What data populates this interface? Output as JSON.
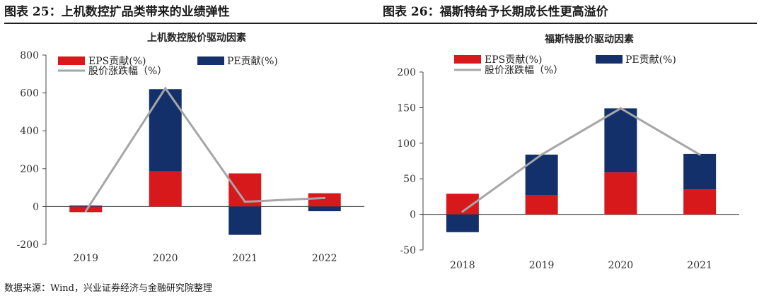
{
  "figures": [
    {
      "caption": "图表 25：上机数控扩品类带来的业绩弹性",
      "chart_data": {
        "type": "bar",
        "stacked": true,
        "title": "上机数控股价驱动因素",
        "categories": [
          "2019",
          "2020",
          "2021",
          "2022"
        ],
        "ylim": [
          -200,
          800
        ],
        "yticks": [
          -200,
          0,
          200,
          400,
          600,
          800
        ],
        "series": [
          {
            "name": "EPS贡献(%)",
            "kind": "bar",
            "color": "#d7191c",
            "values": [
              -30,
              185,
              175,
              70
            ]
          },
          {
            "name": "PE贡献(%)",
            "kind": "bar",
            "color": "#14306a",
            "values": [
              5,
              435,
              -150,
              -25
            ]
          },
          {
            "name": "股价涨跌幅（%）",
            "kind": "line",
            "color": "#a6a6a6",
            "values": [
              -25,
              625,
              25,
              45
            ]
          }
        ],
        "legend_position": "top"
      }
    },
    {
      "caption": "图表 26：福斯特给予长期成长性更高溢价",
      "chart_data": {
        "type": "bar",
        "stacked": true,
        "title": "福斯特股价驱动因素",
        "categories": [
          "2018",
          "2019",
          "2020",
          "2021"
        ],
        "ylim": [
          -50,
          200
        ],
        "yticks": [
          -50,
          0,
          50,
          100,
          150,
          200
        ],
        "series": [
          {
            "name": "EPS贡献(%)",
            "kind": "bar",
            "color": "#d7191c",
            "values": [
              29,
              27,
              59,
              35
            ]
          },
          {
            "name": "PE贡献(%)",
            "kind": "bar",
            "color": "#14306a",
            "values": [
              -25,
              57,
              90,
              50
            ]
          },
          {
            "name": "股价涨跌幅（%）",
            "kind": "line",
            "color": "#a6a6a6",
            "values": [
              4,
              84,
              149,
              84
            ]
          }
        ],
        "legend_position": "top"
      }
    }
  ],
  "source": "数据来源：Wind，兴业证券经济与金融研究院整理"
}
